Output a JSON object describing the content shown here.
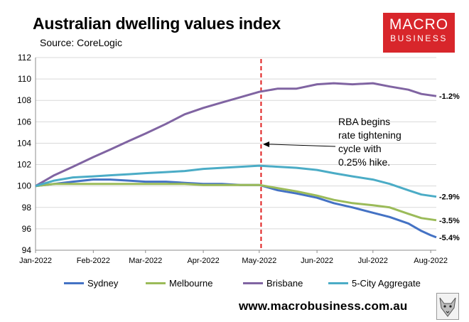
{
  "header": {
    "title": "Australian dwelling values index",
    "source": "Source: CoreLogic"
  },
  "logo": {
    "line1": "MACRO",
    "line2": "BUSINESS"
  },
  "footer": {
    "url": "www.macrobusiness.com.au"
  },
  "colors": {
    "sydney": "#4472c4",
    "melbourne": "#9bbb59",
    "brisbane": "#8064a2",
    "aggregate": "#4bacc6",
    "marker": "#e02020",
    "logo": "#d8262b"
  },
  "chart_data": {
    "type": "line",
    "title": "Australian dwelling values index",
    "subtitle": "Source: CoreLogic",
    "xlabel": "",
    "ylabel": "",
    "ylim": [
      94,
      112
    ],
    "yticks": [
      94,
      96,
      98,
      100,
      102,
      104,
      106,
      108,
      110,
      112
    ],
    "x_tick_labels": [
      "Jan-2022",
      "Feb-2022",
      "Mar-2022",
      "Apr-2022",
      "May-2022",
      "Jun-2022",
      "Jul-2022",
      "Aug-2022"
    ],
    "x_month_days": [
      0,
      31,
      59,
      90,
      120,
      151,
      181,
      212
    ],
    "x_range_days": [
      0,
      215
    ],
    "grid": "horizontal",
    "legend_position": "bottom",
    "series": [
      {
        "name": "Sydney",
        "key": "sydney",
        "end_label": "-5.4%",
        "points": [
          [
            0,
            100
          ],
          [
            10,
            100.2
          ],
          [
            20,
            100.4
          ],
          [
            31,
            100.6
          ],
          [
            40,
            100.6
          ],
          [
            50,
            100.5
          ],
          [
            59,
            100.4
          ],
          [
            70,
            100.4
          ],
          [
            80,
            100.3
          ],
          [
            90,
            100.2
          ],
          [
            100,
            100.2
          ],
          [
            110,
            100.1
          ],
          [
            120,
            100.1
          ],
          [
            130,
            99.6
          ],
          [
            140,
            99.3
          ],
          [
            151,
            98.9
          ],
          [
            160,
            98.4
          ],
          [
            170,
            98
          ],
          [
            181,
            97.5
          ],
          [
            190,
            97.1
          ],
          [
            200,
            96.5
          ],
          [
            207,
            95.8
          ],
          [
            212,
            95.4
          ],
          [
            215,
            95.2
          ]
        ]
      },
      {
        "name": "Melbourne",
        "key": "melbourne",
        "end_label": "-3.5%",
        "points": [
          [
            0,
            100
          ],
          [
            10,
            100.2
          ],
          [
            20,
            100.2
          ],
          [
            31,
            100.2
          ],
          [
            40,
            100.2
          ],
          [
            50,
            100.2
          ],
          [
            59,
            100.2
          ],
          [
            70,
            100.2
          ],
          [
            80,
            100.2
          ],
          [
            90,
            100.1
          ],
          [
            100,
            100.1
          ],
          [
            110,
            100.1
          ],
          [
            120,
            100.1
          ],
          [
            130,
            99.8
          ],
          [
            140,
            99.5
          ],
          [
            151,
            99.1
          ],
          [
            160,
            98.7
          ],
          [
            170,
            98.4
          ],
          [
            181,
            98.2
          ],
          [
            190,
            98
          ],
          [
            200,
            97.4
          ],
          [
            207,
            97
          ],
          [
            215,
            96.8
          ]
        ]
      },
      {
        "name": "Brisbane",
        "key": "brisbane",
        "end_label": "-1.2%",
        "points": [
          [
            0,
            100
          ],
          [
            10,
            101
          ],
          [
            20,
            101.8
          ],
          [
            31,
            102.7
          ],
          [
            40,
            103.4
          ],
          [
            50,
            104.2
          ],
          [
            59,
            104.9
          ],
          [
            70,
            105.8
          ],
          [
            80,
            106.7
          ],
          [
            90,
            107.3
          ],
          [
            100,
            107.8
          ],
          [
            110,
            108.3
          ],
          [
            120,
            108.8
          ],
          [
            130,
            109.1
          ],
          [
            140,
            109.1
          ],
          [
            151,
            109.5
          ],
          [
            160,
            109.6
          ],
          [
            170,
            109.5
          ],
          [
            181,
            109.6
          ],
          [
            190,
            109.3
          ],
          [
            200,
            109
          ],
          [
            207,
            108.6
          ],
          [
            215,
            108.4
          ]
        ]
      },
      {
        "name": "5-City Aggregate",
        "key": "aggregate",
        "end_label": "-2.9%",
        "points": [
          [
            0,
            100
          ],
          [
            10,
            100.5
          ],
          [
            20,
            100.8
          ],
          [
            31,
            100.9
          ],
          [
            40,
            101
          ],
          [
            50,
            101.1
          ],
          [
            59,
            101.2
          ],
          [
            70,
            101.3
          ],
          [
            80,
            101.4
          ],
          [
            90,
            101.6
          ],
          [
            100,
            101.7
          ],
          [
            110,
            101.8
          ],
          [
            120,
            101.9
          ],
          [
            130,
            101.8
          ],
          [
            140,
            101.7
          ],
          [
            151,
            101.5
          ],
          [
            160,
            101.2
          ],
          [
            170,
            100.9
          ],
          [
            181,
            100.6
          ],
          [
            190,
            100.2
          ],
          [
            200,
            99.6
          ],
          [
            207,
            99.2
          ],
          [
            215,
            99
          ]
        ]
      }
    ],
    "marker": {
      "day": 121,
      "style": "dashed-vertical"
    },
    "annotation": {
      "lines": [
        "RBA begins",
        "rate tightening",
        "cycle with",
        "0.25% hike."
      ],
      "arrow_to_day": 122,
      "arrow_to_value": 103.9
    }
  }
}
